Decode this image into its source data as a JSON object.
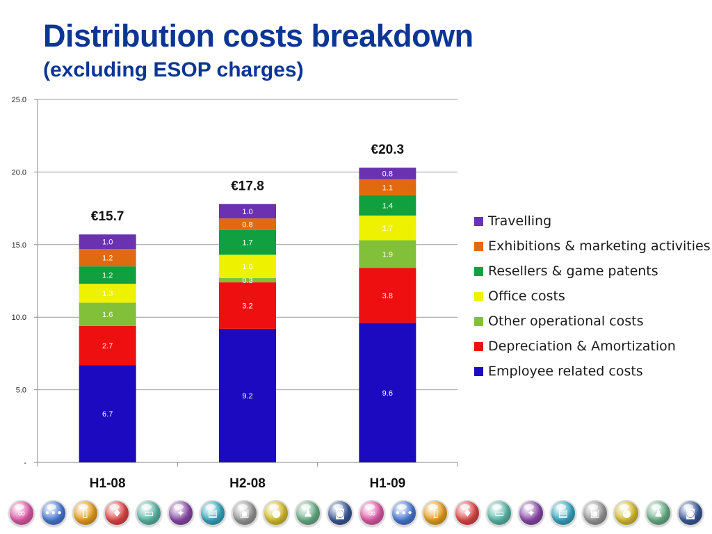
{
  "slide": {
    "title": "Distribution costs breakdown",
    "subtitle": "(excluding ESOP charges)"
  },
  "chart_data": {
    "type": "bar",
    "stacked": true,
    "categories": [
      "H1-08",
      "H2-08",
      "H1-09"
    ],
    "totals": [
      "€15.7",
      "€17.8",
      "€20.3"
    ],
    "ylim": [
      0,
      25
    ],
    "yticks": [
      0,
      5,
      10,
      15,
      20,
      25
    ],
    "ytick_labels": [
      "-",
      "5.0",
      "10.0",
      "15.0",
      "20.0",
      "25.0"
    ],
    "grid": true,
    "legend_position": "right",
    "series": [
      {
        "name": "Employee related costs",
        "color": "#1c0ac0",
        "values": [
          6.7,
          9.2,
          9.6
        ],
        "labels": [
          "6.7",
          "9.2",
          "9.6"
        ]
      },
      {
        "name": "Depreciation & Amortization",
        "color": "#ee1010",
        "values": [
          2.7,
          3.2,
          3.8
        ],
        "labels": [
          "2.7",
          "3.2",
          "3.8"
        ]
      },
      {
        "name": "Other operational costs",
        "color": "#82c03a",
        "values": [
          1.6,
          0.3,
          1.9
        ],
        "labels": [
          "1.6",
          "0.3",
          "1.9"
        ]
      },
      {
        "name": "Office costs",
        "color": "#eef200",
        "values": [
          1.3,
          1.6,
          1.7
        ],
        "labels": [
          "1.3",
          "1.6",
          "1.7"
        ]
      },
      {
        "name": "Resellers & game patents",
        "color": "#10a040",
        "values": [
          1.2,
          1.7,
          1.4
        ],
        "labels": [
          "1.2",
          "1.7",
          "1.4"
        ]
      },
      {
        "name": "Exhibitions & marketing activities",
        "color": "#e06a10",
        "values": [
          1.2,
          0.8,
          1.1
        ],
        "labels": [
          "1.2",
          "0.8",
          "1.1"
        ]
      },
      {
        "name": "Travelling",
        "color": "#6a32b0",
        "values": [
          1.0,
          1.0,
          0.8
        ],
        "labels": [
          "1.0",
          "1.0",
          "0.8"
        ]
      }
    ]
  },
  "footer_icons": [
    {
      "name": "rings-icon",
      "color": "#e05aa8",
      "glyph": "∞"
    },
    {
      "name": "dots-icon",
      "color": "#4a7ad8",
      "glyph": "•••"
    },
    {
      "name": "phone-icon",
      "color": "#e8a020",
      "glyph": "▯"
    },
    {
      "name": "cards-icon",
      "color": "#e04848",
      "glyph": "♦"
    },
    {
      "name": "tv-icon",
      "color": "#5ab8a8",
      "glyph": "▭"
    },
    {
      "name": "dragon-icon",
      "color": "#8a4aa8",
      "glyph": "✦"
    },
    {
      "name": "tablet-icon",
      "color": "#38a8c0",
      "glyph": "▤"
    },
    {
      "name": "card-icon",
      "color": "#9a9a9a",
      "glyph": "▣"
    },
    {
      "name": "coin-icon",
      "color": "#d8c030",
      "glyph": "●"
    },
    {
      "name": "people-icon",
      "color": "#6ab088",
      "glyph": "♟"
    },
    {
      "name": "camera-icon",
      "color": "#3a5a98",
      "glyph": "◙"
    },
    {
      "name": "rings-icon",
      "color": "#e05aa8",
      "glyph": "∞"
    },
    {
      "name": "dots-icon",
      "color": "#4a7ad8",
      "glyph": "•••"
    },
    {
      "name": "phone-icon",
      "color": "#e8a020",
      "glyph": "▯"
    },
    {
      "name": "cards-icon",
      "color": "#e04848",
      "glyph": "♦"
    },
    {
      "name": "tv-icon",
      "color": "#5ab8a8",
      "glyph": "▭"
    },
    {
      "name": "dragon-icon",
      "color": "#8a4aa8",
      "glyph": "✦"
    },
    {
      "name": "tablet-icon",
      "color": "#38a8c0",
      "glyph": "▤"
    },
    {
      "name": "card-icon",
      "color": "#9a9a9a",
      "glyph": "▣"
    },
    {
      "name": "coin-icon",
      "color": "#d8c030",
      "glyph": "●"
    },
    {
      "name": "people-icon",
      "color": "#6ab088",
      "glyph": "♟"
    },
    {
      "name": "camera-icon",
      "color": "#3a5a98",
      "glyph": "◙"
    }
  ]
}
